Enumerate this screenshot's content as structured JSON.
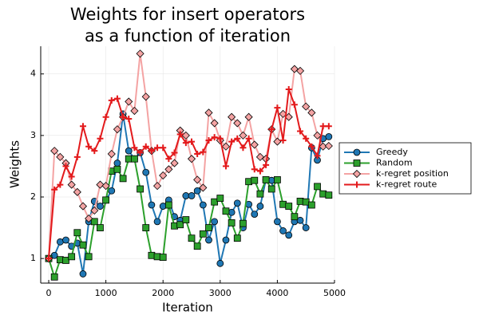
{
  "chart_data": {
    "type": "line",
    "title": [
      "Weights for insert operators",
      "as a function of iteration"
    ],
    "xlabel": "Iteration",
    "ylabel": "Weights",
    "x": [
      0,
      100,
      200,
      300,
      400,
      500,
      600,
      700,
      800,
      900,
      1000,
      1100,
      1200,
      1300,
      1400,
      1500,
      1600,
      1700,
      1800,
      1900,
      2000,
      2100,
      2200,
      2300,
      2400,
      2500,
      2600,
      2700,
      2800,
      2900,
      3000,
      3100,
      3200,
      3300,
      3400,
      3500,
      3600,
      3700,
      3800,
      3900,
      4000,
      4100,
      4200,
      4300,
      4400,
      4500,
      4600,
      4700,
      4800,
      4900
    ],
    "series": [
      {
        "name": "Greedy",
        "color": "#1f77b4",
        "marker": "circle",
        "values": [
          1.0,
          1.05,
          1.27,
          1.3,
          1.2,
          1.25,
          0.75,
          1.6,
          1.93,
          1.85,
          1.95,
          2.1,
          2.55,
          3.35,
          2.75,
          2.62,
          2.72,
          2.4,
          1.87,
          1.6,
          1.85,
          1.95,
          1.68,
          1.62,
          2.02,
          2.02,
          2.1,
          1.87,
          1.3,
          1.6,
          0.92,
          1.3,
          1.75,
          1.9,
          1.5,
          1.88,
          1.72,
          1.85,
          2.28,
          2.27,
          1.6,
          1.45,
          1.38,
          1.6,
          1.62,
          1.5,
          2.8,
          2.6,
          2.95,
          2.98
        ]
      },
      {
        "name": "Random",
        "color": "#2ca02c",
        "marker": "square",
        "values": [
          1.0,
          0.7,
          0.98,
          0.97,
          1.03,
          1.42,
          1.22,
          1.03,
          1.6,
          1.5,
          1.95,
          2.42,
          2.45,
          2.3,
          2.62,
          2.62,
          2.13,
          1.5,
          1.05,
          1.03,
          1.02,
          1.87,
          1.53,
          1.55,
          1.63,
          1.33,
          1.2,
          1.4,
          1.5,
          1.92,
          1.98,
          1.77,
          1.58,
          1.33,
          1.57,
          2.25,
          2.27,
          2.05,
          2.28,
          2.13,
          2.28,
          1.88,
          1.85,
          1.68,
          1.93,
          1.92,
          1.87,
          2.17,
          2.05,
          2.03
        ]
      },
      {
        "name": "k-regret position",
        "color": "#f4a3a3",
        "marker": "diamond",
        "values": [
          1.0,
          2.75,
          2.65,
          2.55,
          2.2,
          2.08,
          1.85,
          1.65,
          1.78,
          2.2,
          2.18,
          2.7,
          3.1,
          3.3,
          3.55,
          3.4,
          4.33,
          3.63,
          2.75,
          2.18,
          2.35,
          2.45,
          2.55,
          3.08,
          3.0,
          2.62,
          2.28,
          2.15,
          3.37,
          3.2,
          2.92,
          2.82,
          3.3,
          3.2,
          3.0,
          3.3,
          2.85,
          2.65,
          2.62,
          3.1,
          2.9,
          3.35,
          3.3,
          4.08,
          4.05,
          3.47,
          3.37,
          3.0,
          2.82,
          2.83
        ]
      },
      {
        "name": "k-regret route",
        "color": "#e31a1c",
        "marker": "plus",
        "values": [
          1.0,
          2.12,
          2.2,
          2.5,
          2.33,
          2.65,
          3.15,
          2.82,
          2.75,
          2.95,
          3.3,
          3.57,
          3.6,
          3.3,
          3.27,
          2.8,
          2.72,
          2.82,
          2.75,
          2.8,
          2.8,
          2.62,
          2.72,
          3.02,
          2.88,
          2.9,
          2.7,
          2.73,
          2.92,
          2.97,
          2.95,
          2.5,
          2.9,
          2.95,
          2.8,
          2.95,
          2.45,
          2.42,
          2.52,
          3.1,
          3.45,
          2.92,
          3.75,
          3.5,
          3.07,
          2.95,
          2.82,
          2.67,
          3.15,
          3.15
        ]
      }
    ],
    "xlim": [
      -140,
      5000
    ],
    "ylim": [
      0.6,
      4.45
    ],
    "xticks": [
      0,
      1000,
      2000,
      3000,
      4000,
      5000
    ],
    "yticks": [
      1,
      2,
      3,
      4
    ],
    "grid": true,
    "legend": "right"
  }
}
